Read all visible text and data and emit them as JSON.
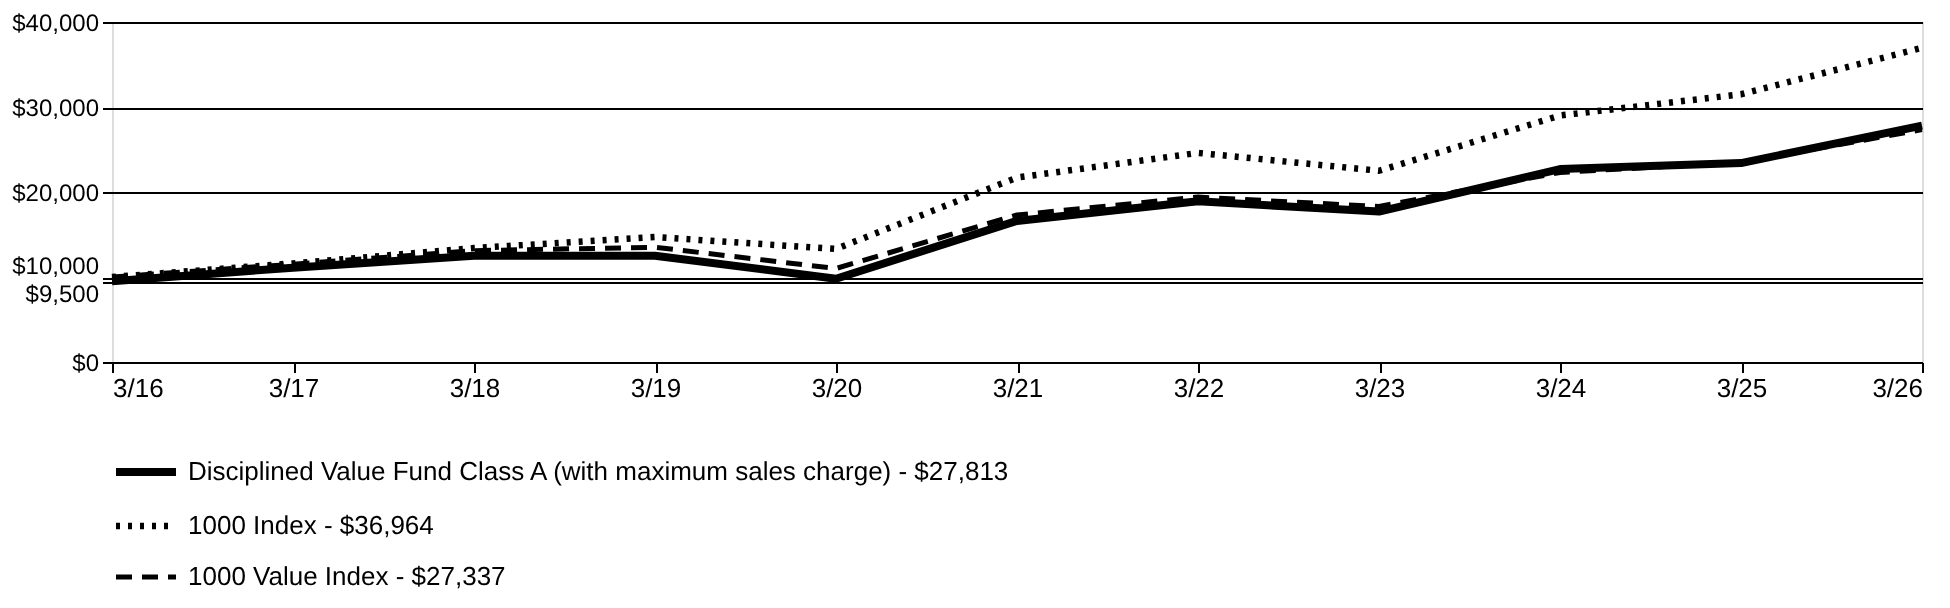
{
  "chart_data": {
    "type": "line",
    "categories": [
      "3/16",
      "3/17",
      "3/18",
      "3/19",
      "3/20",
      "3/21",
      "3/22",
      "3/23",
      "3/24",
      "3/25",
      "3/26"
    ],
    "series": [
      {
        "name": "Disciplined Value Fund Class A (with maximum sales charge)  - $27,813",
        "color": "#000000",
        "line_style": "solid",
        "values": [
          9500,
          11100,
          12500,
          12500,
          9800,
          16600,
          18900,
          17700,
          22700,
          23400,
          27813
        ]
      },
      {
        "name": "1000 Index - $36,964",
        "color": "#000000",
        "line_style": "dotted",
        "values": [
          10000,
          11600,
          13400,
          14700,
          13300,
          21700,
          24600,
          22500,
          29000,
          31500,
          36964
        ]
      },
      {
        "name": "1000 Value Index - $27,337",
        "color": "#000000",
        "line_style": "dashed",
        "values": [
          10000,
          11500,
          13100,
          13500,
          11000,
          17300,
          19400,
          18300,
          22300,
          23500,
          27337
        ]
      }
    ],
    "ylim": [
      0,
      40000
    ],
    "yticks": [
      {
        "value": 0,
        "label": "$0"
      },
      {
        "value": 9500,
        "label": "$9,500"
      },
      {
        "value": 10000,
        "label": "$10,000"
      },
      {
        "value": 20000,
        "label": "$20,000"
      },
      {
        "value": 30000,
        "label": "$30,000"
      },
      {
        "value": 40000,
        "label": "$40,000"
      }
    ],
    "grid": "y",
    "legend": "bottom left",
    "marker": "none"
  }
}
